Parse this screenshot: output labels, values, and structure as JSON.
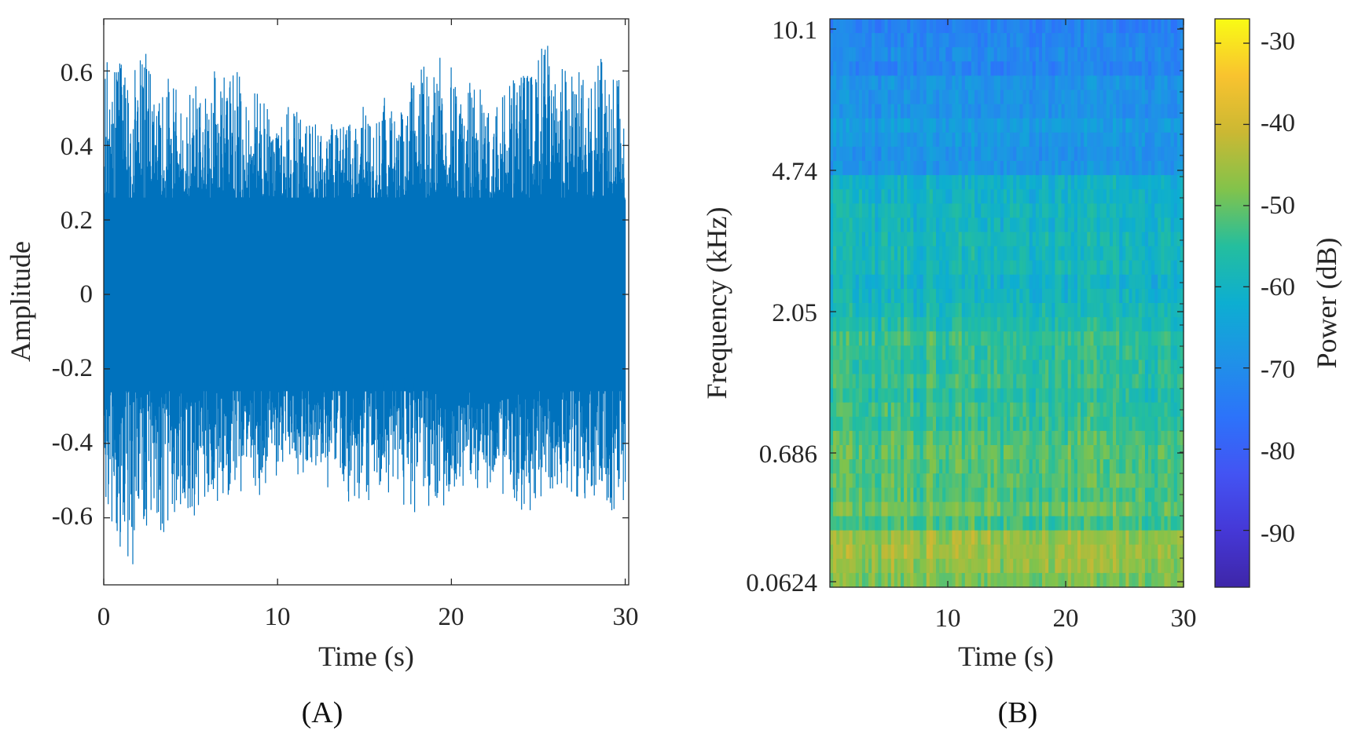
{
  "chart_data": [
    {
      "panel_label": "(A)",
      "type": "line",
      "series_color": "#0072BD",
      "xlabel": "Time (s)",
      "ylabel": "Amplitude",
      "xlim": [
        0,
        30.2
      ],
      "ylim": [
        -0.78,
        0.74
      ],
      "xticks": [
        0,
        10,
        20,
        30
      ],
      "xtick_labels": [
        "0",
        "10",
        "20",
        "30"
      ],
      "yticks": [
        0.6,
        0.4,
        0.2,
        0,
        -0.2,
        -0.4,
        -0.6
      ],
      "ytick_labels": [
        "0.6",
        "0.4",
        "0.2",
        "0",
        "-0.2",
        "-0.4",
        "-0.6"
      ],
      "envelope": {
        "t": [
          0,
          1.5,
          3,
          4.5,
          6,
          7.5,
          9,
          10.5,
          12,
          13.5,
          15,
          16.5,
          18,
          19.5,
          21,
          22.5,
          24,
          25.5,
          27,
          28.5,
          30
        ],
        "upper": [
          0.66,
          0.7,
          0.64,
          0.56,
          0.6,
          0.62,
          0.55,
          0.52,
          0.48,
          0.5,
          0.52,
          0.55,
          0.62,
          0.66,
          0.6,
          0.56,
          0.64,
          0.7,
          0.6,
          0.66,
          0.62
        ],
        "lower": [
          -0.62,
          -0.75,
          -0.68,
          -0.62,
          -0.58,
          -0.58,
          -0.56,
          -0.52,
          -0.5,
          -0.55,
          -0.58,
          -0.6,
          -0.62,
          -0.58,
          -0.55,
          -0.52,
          -0.62,
          -0.58,
          -0.56,
          -0.62,
          -0.6
        ],
        "core_upper": 0.26,
        "core_lower": -0.26
      },
      "grid": false
    },
    {
      "panel_label": "(B)",
      "type": "heatmap",
      "xlabel": "Time (s)",
      "ylabel": "Frequency (kHz)",
      "xlim": [
        0,
        30
      ],
      "xticks": [
        10,
        20,
        30
      ],
      "xtick_labels": [
        "10",
        "20",
        "30"
      ],
      "ytick_labels": [
        "10.1",
        "4.74",
        "2.05",
        "0.686",
        "0.0624"
      ],
      "colormap": "parula",
      "colorbar": {
        "label": "Power (dB)",
        "range": [
          -97,
          -27
        ],
        "ticks": [
          -30,
          -40,
          -50,
          -60,
          -70,
          -80,
          -90
        ],
        "tick_labels": [
          "-30",
          "-40",
          "-50",
          "-60",
          "-70",
          "-80",
          "-90"
        ]
      },
      "power_profile_db": {
        "frequency_bands_from_top": [
          {
            "band": "10.1 to 4.74 kHz",
            "mean_power_db": -70
          },
          {
            "band": "4.74 to 2.05 kHz",
            "mean_power_db": -60
          },
          {
            "band": "2.05 to 0.686 kHz",
            "mean_power_db": -54
          },
          {
            "band": "0.686 to 0.0624 kHz",
            "mean_power_db": -48
          }
        ]
      },
      "grid": false
    }
  ]
}
